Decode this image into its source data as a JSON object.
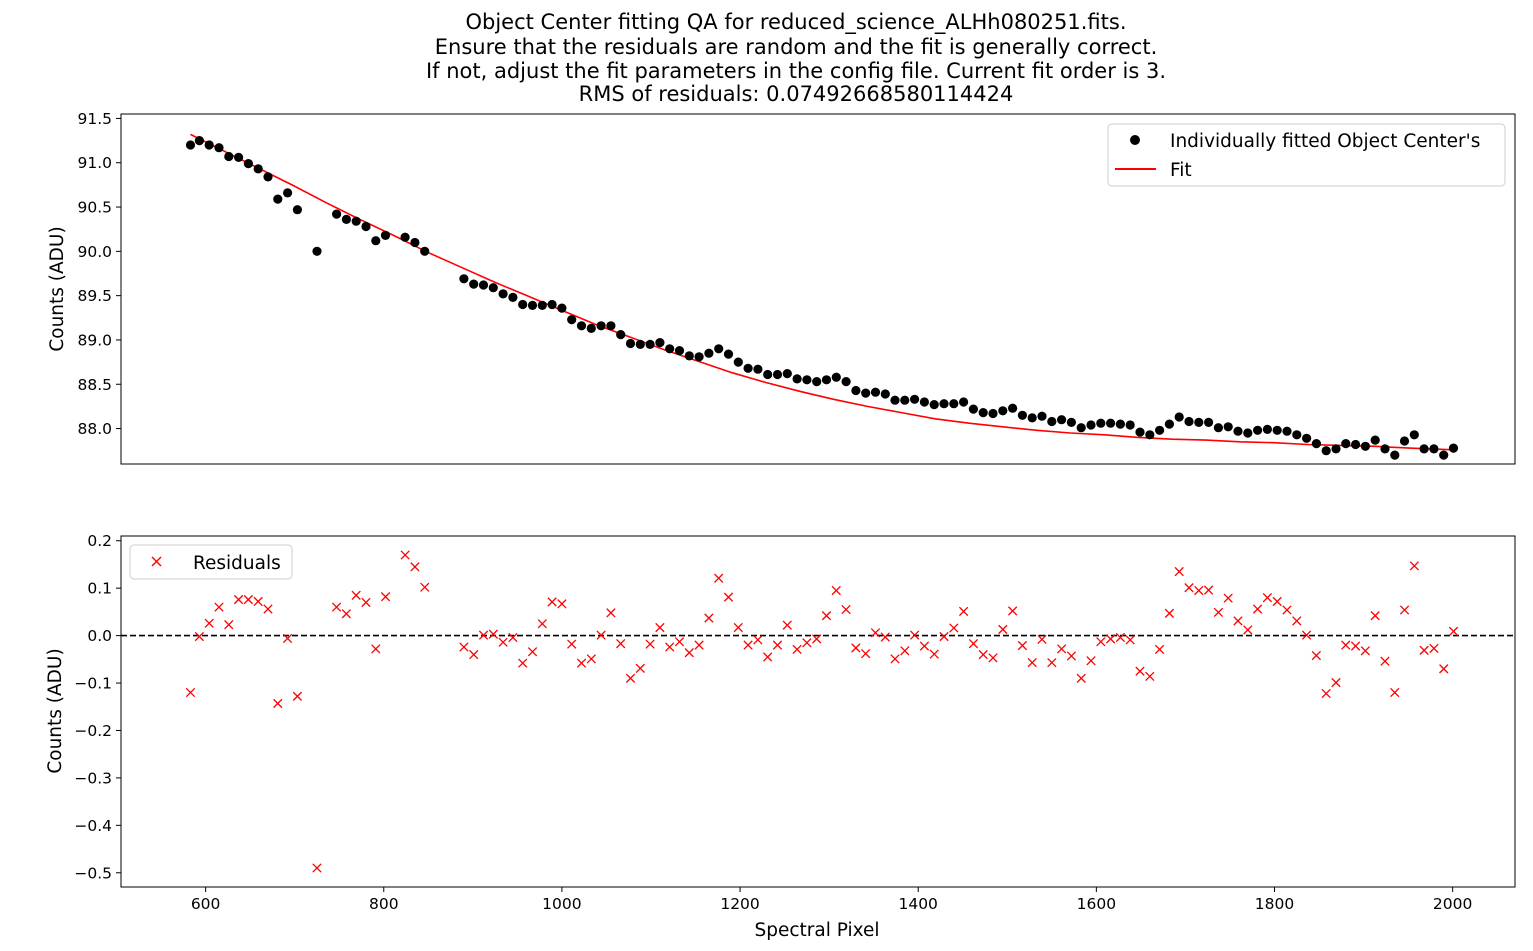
{
  "chart_data": [
    {
      "type": "scatter",
      "title_lines": [
        "Object Center fitting QA for reduced_science_ALHh080251.fits.",
        "Ensure that the residuals are random and the fit is generally correct.",
        "If not, adjust the fit parameters in the config file. Current fit order is 3.",
        "RMS of residuals: 0.07492668580114424"
      ],
      "xlabel": "",
      "ylabel": "Counts (ADU)",
      "xlim": [
        505,
        2070
      ],
      "ylim": [
        87.6,
        91.55
      ],
      "yticks": [
        88.0,
        88.5,
        89.0,
        89.5,
        90.0,
        90.5,
        91.0,
        91.5
      ],
      "ytick_labels": [
        "88.0",
        "88.5",
        "89.0",
        "89.5",
        "90.0",
        "90.5",
        "91.0",
        "91.5"
      ],
      "grid": false,
      "legend_position": "top-right",
      "series": [
        {
          "name": "Individually fitted Object Center's",
          "marker": "dot",
          "color": "#000000",
          "x": [
            583,
            593,
            604,
            615,
            626,
            637,
            648,
            659,
            670,
            681,
            692,
            703,
            725,
            747,
            758,
            769,
            780,
            791,
            802,
            824,
            835,
            846,
            890,
            901,
            912,
            923,
            934,
            945,
            956,
            967,
            978,
            989,
            1000,
            1011,
            1022,
            1033,
            1044,
            1055,
            1066,
            1077,
            1088,
            1099,
            1110,
            1121,
            1132,
            1143,
            1154,
            1165,
            1176,
            1187,
            1198,
            1209,
            1220,
            1231,
            1242,
            1253,
            1264,
            1275,
            1286,
            1297,
            1308,
            1319,
            1330,
            1341,
            1352,
            1363,
            1374,
            1385,
            1396,
            1407,
            1418,
            1429,
            1440,
            1451,
            1462,
            1473,
            1484,
            1495,
            1506,
            1517,
            1528,
            1539,
            1550,
            1561,
            1572,
            1583,
            1594,
            1605,
            1616,
            1627,
            1638,
            1649,
            1660,
            1671,
            1682,
            1693,
            1704,
            1715,
            1726,
            1737,
            1748,
            1759,
            1770,
            1781,
            1792,
            1803,
            1814,
            1825,
            1836,
            1847,
            1858,
            1869,
            1880,
            1891,
            1902,
            1913,
            1924,
            1935,
            1946,
            1957,
            1968,
            1979,
            1990,
            2001
          ],
          "y": [
            91.2,
            91.25,
            91.2,
            91.17,
            91.07,
            91.06,
            90.99,
            90.93,
            90.84,
            90.59,
            90.66,
            90.47,
            90.0,
            90.42,
            90.36,
            90.34,
            90.28,
            90.12,
            90.18,
            90.16,
            90.1,
            90.0,
            89.69,
            89.63,
            89.62,
            89.59,
            89.52,
            89.48,
            89.4,
            89.39,
            89.39,
            89.4,
            89.36,
            89.23,
            89.16,
            89.13,
            89.16,
            89.16,
            89.06,
            88.96,
            88.95,
            88.95,
            88.97,
            88.9,
            88.88,
            88.82,
            88.81,
            88.85,
            88.9,
            88.84,
            88.75,
            88.68,
            88.67,
            88.61,
            88.61,
            88.62,
            88.56,
            88.55,
            88.53,
            88.55,
            88.58,
            88.53,
            88.43,
            88.4,
            88.41,
            88.39,
            88.32,
            88.32,
            88.33,
            88.3,
            88.27,
            88.28,
            88.28,
            88.3,
            88.22,
            88.18,
            88.17,
            88.2,
            88.23,
            88.15,
            88.12,
            88.14,
            88.08,
            88.1,
            88.07,
            88.01,
            88.04,
            88.06,
            88.06,
            88.05,
            88.04,
            87.96,
            87.93,
            87.98,
            88.05,
            88.13,
            88.08,
            88.07,
            88.07,
            88.01,
            88.02,
            87.97,
            87.95,
            87.98,
            87.99,
            87.98,
            87.97,
            87.93,
            87.89,
            87.83,
            87.75,
            87.77,
            87.83,
            87.82,
            87.8,
            87.87,
            87.77,
            87.7,
            87.86,
            87.93,
            87.77,
            87.77,
            87.7,
            87.78
          ]
        },
        {
          "name": "Fit",
          "marker": "line",
          "color": "#ff0000",
          "x": [
            583,
            621,
            659,
            697,
            735,
            773,
            811,
            849,
            887,
            925,
            963,
            1001,
            1039,
            1077,
            1115,
            1153,
            1191,
            1229,
            1267,
            1305,
            1343,
            1381,
            1419,
            1457,
            1495,
            1533,
            1571,
            1609,
            1647,
            1685,
            1723,
            1761,
            1799,
            1837,
            1875,
            1913,
            1951,
            2001
          ],
          "y": [
            91.32,
            91.13,
            90.94,
            90.75,
            90.55,
            90.36,
            90.18,
            89.99,
            89.82,
            89.65,
            89.49,
            89.33,
            89.17,
            89.03,
            88.89,
            88.76,
            88.63,
            88.52,
            88.42,
            88.33,
            88.25,
            88.18,
            88.11,
            88.06,
            88.02,
            87.98,
            87.95,
            87.93,
            87.9,
            87.88,
            87.87,
            87.85,
            87.84,
            87.82,
            87.81,
            87.8,
            87.78,
            87.76
          ]
        }
      ]
    },
    {
      "type": "scatter",
      "xlabel": "Spectral Pixel",
      "ylabel": "Counts (ADU)",
      "xlim": [
        505,
        2070
      ],
      "ylim": [
        -0.53,
        0.21
      ],
      "xticks": [
        600,
        800,
        1000,
        1200,
        1400,
        1600,
        1800,
        2000
      ],
      "xtick_labels": [
        "600",
        "800",
        "1000",
        "1200",
        "1400",
        "1600",
        "1800",
        "2000"
      ],
      "yticks": [
        -0.5,
        -0.4,
        -0.3,
        -0.2,
        -0.1,
        0.0,
        0.1,
        0.2
      ],
      "ytick_labels": [
        "−0.5",
        "−0.4",
        "−0.3",
        "−0.2",
        "−0.1",
        "0.0",
        "0.1",
        "0.2"
      ],
      "zero_line": 0.0,
      "grid": false,
      "legend_position": "top-left",
      "series": [
        {
          "name": "Residuals",
          "marker": "x",
          "color": "#ff0000",
          "x": [
            583,
            593,
            604,
            615,
            626,
            637,
            648,
            659,
            670,
            681,
            692,
            703,
            725,
            747,
            758,
            769,
            780,
            791,
            802,
            824,
            835,
            846,
            890,
            901,
            912,
            923,
            934,
            945,
            956,
            967,
            978,
            989,
            1000,
            1011,
            1022,
            1033,
            1044,
            1055,
            1066,
            1077,
            1088,
            1099,
            1110,
            1121,
            1132,
            1143,
            1154,
            1165,
            1176,
            1187,
            1198,
            1209,
            1220,
            1231,
            1242,
            1253,
            1264,
            1275,
            1286,
            1297,
            1308,
            1319,
            1330,
            1341,
            1352,
            1363,
            1374,
            1385,
            1396,
            1407,
            1418,
            1429,
            1440,
            1451,
            1462,
            1473,
            1484,
            1495,
            1506,
            1517,
            1528,
            1539,
            1550,
            1561,
            1572,
            1583,
            1594,
            1605,
            1616,
            1627,
            1638,
            1649,
            1660,
            1671,
            1682,
            1693,
            1704,
            1715,
            1726,
            1737,
            1748,
            1759,
            1770,
            1781,
            1792,
            1803,
            1814,
            1825,
            1836,
            1847,
            1858,
            1869,
            1880,
            1891,
            1902,
            1913,
            1924,
            1935,
            1946,
            1957,
            1968,
            1979,
            1990,
            2001
          ],
          "y": [
            -0.12,
            -0.002,
            0.026,
            0.06,
            0.023,
            0.076,
            0.076,
            0.072,
            0.056,
            -0.143,
            -0.006,
            -0.128,
            -0.49,
            0.06,
            0.046,
            0.085,
            0.07,
            -0.028,
            0.082,
            0.17,
            0.145,
            0.102,
            -0.024,
            -0.04,
            0.001,
            0.003,
            -0.014,
            -0.004,
            -0.058,
            -0.034,
            0.025,
            0.071,
            0.067,
            -0.018,
            -0.058,
            -0.049,
            0.001,
            0.048,
            -0.017,
            -0.09,
            -0.069,
            -0.018,
            0.017,
            -0.024,
            -0.013,
            -0.036,
            -0.02,
            0.037,
            0.121,
            0.081,
            0.017,
            -0.02,
            -0.009,
            -0.045,
            -0.02,
            0.022,
            -0.029,
            -0.015,
            -0.007,
            0.042,
            0.095,
            0.055,
            -0.026,
            -0.038,
            0.006,
            -0.003,
            -0.049,
            -0.032,
            0.001,
            -0.022,
            -0.039,
            -0.002,
            0.016,
            0.051,
            -0.017,
            -0.04,
            -0.047,
            0.013,
            0.052,
            -0.021,
            -0.057,
            -0.008,
            -0.057,
            -0.028,
            -0.043,
            -0.09,
            -0.053,
            -0.013,
            -0.007,
            -0.004,
            -0.009,
            -0.075,
            -0.086,
            -0.029,
            0.047,
            0.135,
            0.101,
            0.095,
            0.096,
            0.049,
            0.079,
            0.031,
            0.012,
            0.056,
            0.08,
            0.072,
            0.054,
            0.031,
            0.001,
            -0.042,
            -0.122,
            -0.099,
            -0.02,
            -0.022,
            -0.032,
            0.042,
            -0.054,
            -0.12,
            0.054,
            0.147,
            -0.031,
            -0.027,
            -0.07,
            0.009
          ]
        }
      ]
    }
  ]
}
